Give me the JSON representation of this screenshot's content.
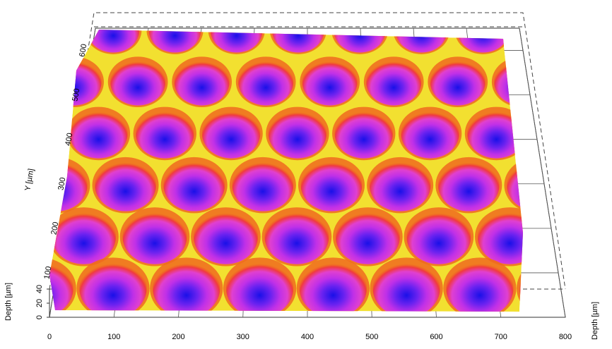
{
  "chart_data": {
    "type": "surface",
    "ylabel": "Y [µm]",
    "zlabel": "Depth [µm]",
    "xlim": [
      0,
      800
    ],
    "xticks": [
      0,
      100,
      200,
      300,
      400,
      500,
      600,
      700,
      800
    ],
    "ylim": [
      0,
      650
    ],
    "yticks": [
      100,
      200,
      300,
      400,
      500,
      600
    ],
    "zlim": [
      0,
      40
    ],
    "zticks": [
      0,
      20,
      40
    ],
    "grid": true
  }
}
